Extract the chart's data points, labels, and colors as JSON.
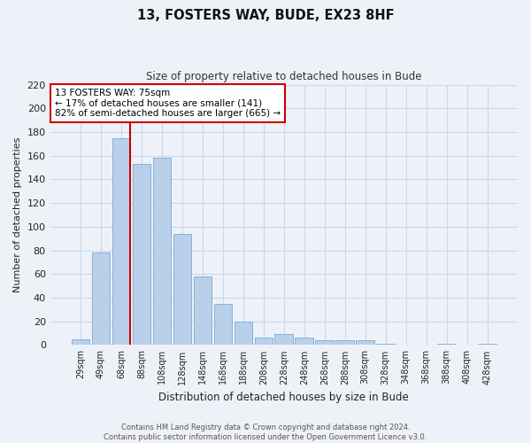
{
  "title": "13, FOSTERS WAY, BUDE, EX23 8HF",
  "subtitle": "Size of property relative to detached houses in Bude",
  "xlabel": "Distribution of detached houses by size in Bude",
  "ylabel": "Number of detached properties",
  "bar_labels": [
    "29sqm",
    "49sqm",
    "68sqm",
    "88sqm",
    "108sqm",
    "128sqm",
    "148sqm",
    "168sqm",
    "188sqm",
    "208sqm",
    "228sqm",
    "248sqm",
    "268sqm",
    "288sqm",
    "308sqm",
    "328sqm",
    "348sqm",
    "368sqm",
    "388sqm",
    "408sqm",
    "428sqm"
  ],
  "bar_values": [
    5,
    78,
    175,
    153,
    158,
    94,
    58,
    35,
    20,
    6,
    9,
    6,
    4,
    4,
    4,
    1,
    0,
    0,
    1,
    0,
    1
  ],
  "bar_color": "#b8d0ea",
  "bar_edge_color": "#8ab0d8",
  "ylim": [
    0,
    220
  ],
  "yticks": [
    0,
    20,
    40,
    60,
    80,
    100,
    120,
    140,
    160,
    180,
    200,
    220
  ],
  "vline_color": "#cc0000",
  "annotation_title": "13 FOSTERS WAY: 75sqm",
  "annotation_line1": "← 17% of detached houses are smaller (141)",
  "annotation_line2": "82% of semi-detached houses are larger (665) →",
  "annotation_box_color": "#ffffff",
  "annotation_box_edge": "#cc0000",
  "footer1": "Contains HM Land Registry data © Crown copyright and database right 2024.",
  "footer2": "Contains public sector information licensed under the Open Government Licence v3.0.",
  "grid_color": "#c8d8ec",
  "background_color": "#eef2f8"
}
